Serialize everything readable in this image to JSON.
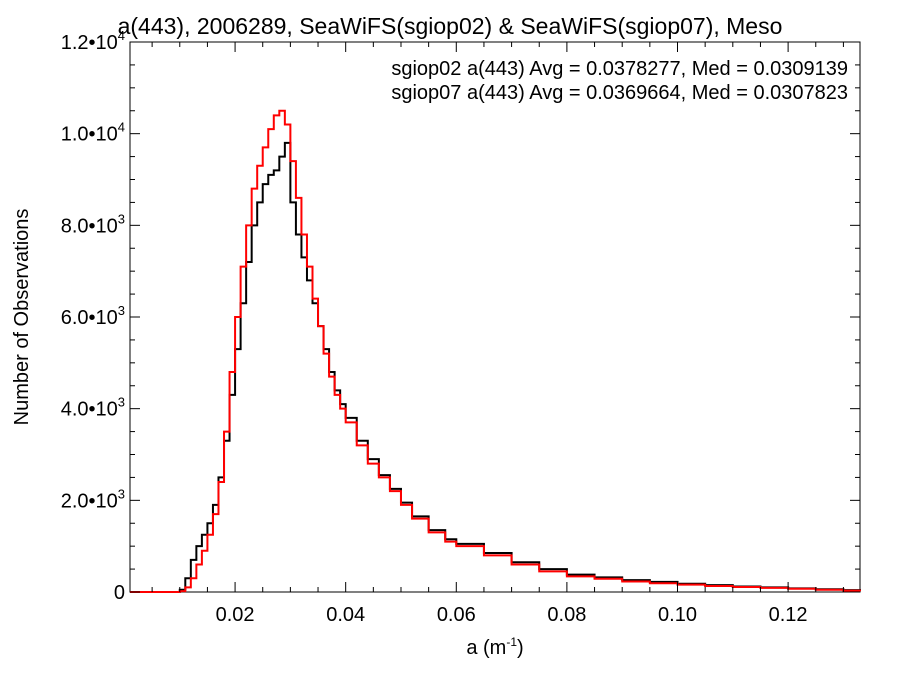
{
  "chart_data": {
    "type": "line",
    "title": "a(443), 2006289, SeaWiFS(sgiop02) & SeaWiFS(sgiop07), Meso",
    "xlabel": "a (m",
    "xlabel_exponent": "-1",
    "xlabel_close": ")",
    "ylabel": "Number of Observations",
    "xlim": [
      0.001,
      0.133
    ],
    "ylim": [
      0,
      12000
    ],
    "x_ticks": [
      {
        "value": 0.02,
        "label": "0.02"
      },
      {
        "value": 0.04,
        "label": "0.04"
      },
      {
        "value": 0.06,
        "label": "0.06"
      },
      {
        "value": 0.08,
        "label": "0.08"
      },
      {
        "value": 0.1,
        "label": "0.10"
      },
      {
        "value": 0.12,
        "label": "0.12"
      }
    ],
    "y_ticks": [
      {
        "value": 0,
        "mantissa": "0",
        "exponent": ""
      },
      {
        "value": 2000,
        "mantissa": "2.0•10",
        "exponent": "3"
      },
      {
        "value": 4000,
        "mantissa": "4.0•10",
        "exponent": "3"
      },
      {
        "value": 6000,
        "mantissa": "6.0•10",
        "exponent": "3"
      },
      {
        "value": 8000,
        "mantissa": "8.0•10",
        "exponent": "3"
      },
      {
        "value": 10000,
        "mantissa": "1.0•10",
        "exponent": "4"
      },
      {
        "value": 12000,
        "mantissa": "1.2•10",
        "exponent": "4"
      }
    ],
    "legend_placement": "top-right",
    "grid": false,
    "series": [
      {
        "name": "sgiop02 a(443) Avg = 0.0378277, Med = 0.0309139",
        "color": "#000000",
        "x": [
          0.001,
          0.009,
          0.01,
          0.011,
          0.012,
          0.013,
          0.014,
          0.015,
          0.016,
          0.017,
          0.018,
          0.019,
          0.02,
          0.021,
          0.022,
          0.023,
          0.024,
          0.025,
          0.026,
          0.027,
          0.028,
          0.029,
          0.03,
          0.031,
          0.032,
          0.033,
          0.034,
          0.035,
          0.036,
          0.037,
          0.038,
          0.039,
          0.04,
          0.042,
          0.044,
          0.046,
          0.048,
          0.05,
          0.052,
          0.055,
          0.058,
          0.06,
          0.065,
          0.07,
          0.075,
          0.08,
          0.085,
          0.09,
          0.095,
          0.1,
          0.105,
          0.11,
          0.115,
          0.12,
          0.125,
          0.13,
          0.133
        ],
        "values": [
          0,
          0,
          50,
          300,
          700,
          1000,
          1250,
          1500,
          1900,
          2500,
          3300,
          4300,
          5300,
          6300,
          7200,
          8000,
          8500,
          8900,
          9100,
          9200,
          9500,
          9800,
          8500,
          7800,
          7300,
          6800,
          6300,
          5800,
          5300,
          4800,
          4400,
          4100,
          3800,
          3300,
          2900,
          2550,
          2250,
          1950,
          1650,
          1350,
          1150,
          1050,
          850,
          650,
          500,
          380,
          320,
          260,
          220,
          180,
          150,
          120,
          100,
          80,
          60,
          40,
          20
        ]
      },
      {
        "name": "sgiop07 a(443) Avg = 0.0369664, Med = 0.0307823",
        "color": "#ff0000",
        "x": [
          0.001,
          0.009,
          0.01,
          0.011,
          0.012,
          0.013,
          0.014,
          0.015,
          0.016,
          0.017,
          0.018,
          0.019,
          0.02,
          0.021,
          0.022,
          0.023,
          0.024,
          0.025,
          0.026,
          0.027,
          0.028,
          0.029,
          0.03,
          0.031,
          0.032,
          0.033,
          0.034,
          0.035,
          0.036,
          0.037,
          0.038,
          0.039,
          0.04,
          0.042,
          0.044,
          0.046,
          0.048,
          0.05,
          0.052,
          0.055,
          0.058,
          0.06,
          0.065,
          0.07,
          0.075,
          0.08,
          0.085,
          0.09,
          0.095,
          0.1,
          0.105,
          0.11,
          0.115,
          0.12,
          0.125,
          0.13,
          0.133
        ],
        "values": [
          0,
          0,
          20,
          100,
          300,
          600,
          900,
          1250,
          1700,
          2400,
          3500,
          4800,
          6000,
          7100,
          8000,
          8800,
          9300,
          9700,
          10100,
          10400,
          10500,
          10200,
          9400,
          8600,
          7800,
          7100,
          6400,
          5800,
          5200,
          4700,
          4300,
          4000,
          3700,
          3200,
          2800,
          2500,
          2200,
          1900,
          1600,
          1300,
          1100,
          1000,
          800,
          600,
          450,
          340,
          290,
          230,
          190,
          160,
          130,
          110,
          90,
          70,
          50,
          30,
          15
        ]
      }
    ]
  }
}
